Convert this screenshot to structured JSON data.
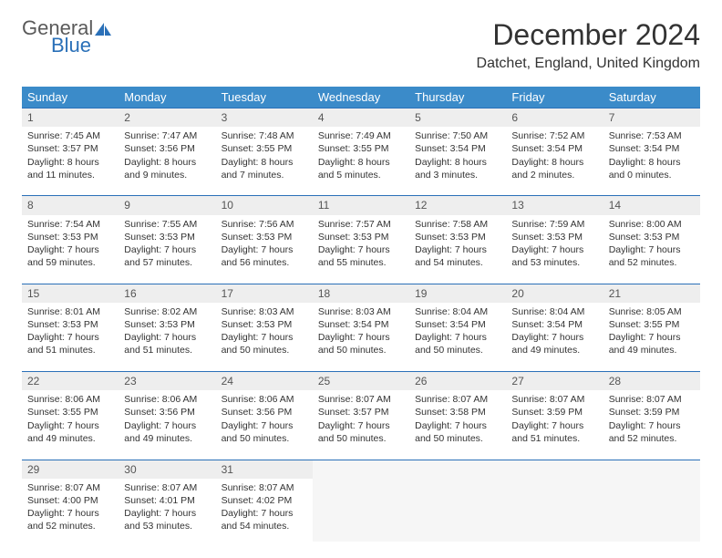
{
  "logo": {
    "general": "General",
    "blue": "Blue"
  },
  "title": "December 2024",
  "location": "Datchet, England, United Kingdom",
  "colors": {
    "header_bg": "#3b8bc9",
    "header_text": "#ffffff",
    "border": "#2a70b8",
    "daynum_bg": "#eeeeee",
    "logo_blue": "#2a70b8",
    "logo_gray": "#5a5a5a"
  },
  "weekdays": [
    "Sunday",
    "Monday",
    "Tuesday",
    "Wednesday",
    "Thursday",
    "Friday",
    "Saturday"
  ],
  "weeks": [
    [
      {
        "n": "1",
        "sr": "Sunrise: 7:45 AM",
        "ss": "Sunset: 3:57 PM",
        "d1": "Daylight: 8 hours",
        "d2": "and 11 minutes."
      },
      {
        "n": "2",
        "sr": "Sunrise: 7:47 AM",
        "ss": "Sunset: 3:56 PM",
        "d1": "Daylight: 8 hours",
        "d2": "and 9 minutes."
      },
      {
        "n": "3",
        "sr": "Sunrise: 7:48 AM",
        "ss": "Sunset: 3:55 PM",
        "d1": "Daylight: 8 hours",
        "d2": "and 7 minutes."
      },
      {
        "n": "4",
        "sr": "Sunrise: 7:49 AM",
        "ss": "Sunset: 3:55 PM",
        "d1": "Daylight: 8 hours",
        "d2": "and 5 minutes."
      },
      {
        "n": "5",
        "sr": "Sunrise: 7:50 AM",
        "ss": "Sunset: 3:54 PM",
        "d1": "Daylight: 8 hours",
        "d2": "and 3 minutes."
      },
      {
        "n": "6",
        "sr": "Sunrise: 7:52 AM",
        "ss": "Sunset: 3:54 PM",
        "d1": "Daylight: 8 hours",
        "d2": "and 2 minutes."
      },
      {
        "n": "7",
        "sr": "Sunrise: 7:53 AM",
        "ss": "Sunset: 3:54 PM",
        "d1": "Daylight: 8 hours",
        "d2": "and 0 minutes."
      }
    ],
    [
      {
        "n": "8",
        "sr": "Sunrise: 7:54 AM",
        "ss": "Sunset: 3:53 PM",
        "d1": "Daylight: 7 hours",
        "d2": "and 59 minutes."
      },
      {
        "n": "9",
        "sr": "Sunrise: 7:55 AM",
        "ss": "Sunset: 3:53 PM",
        "d1": "Daylight: 7 hours",
        "d2": "and 57 minutes."
      },
      {
        "n": "10",
        "sr": "Sunrise: 7:56 AM",
        "ss": "Sunset: 3:53 PM",
        "d1": "Daylight: 7 hours",
        "d2": "and 56 minutes."
      },
      {
        "n": "11",
        "sr": "Sunrise: 7:57 AM",
        "ss": "Sunset: 3:53 PM",
        "d1": "Daylight: 7 hours",
        "d2": "and 55 minutes."
      },
      {
        "n": "12",
        "sr": "Sunrise: 7:58 AM",
        "ss": "Sunset: 3:53 PM",
        "d1": "Daylight: 7 hours",
        "d2": "and 54 minutes."
      },
      {
        "n": "13",
        "sr": "Sunrise: 7:59 AM",
        "ss": "Sunset: 3:53 PM",
        "d1": "Daylight: 7 hours",
        "d2": "and 53 minutes."
      },
      {
        "n": "14",
        "sr": "Sunrise: 8:00 AM",
        "ss": "Sunset: 3:53 PM",
        "d1": "Daylight: 7 hours",
        "d2": "and 52 minutes."
      }
    ],
    [
      {
        "n": "15",
        "sr": "Sunrise: 8:01 AM",
        "ss": "Sunset: 3:53 PM",
        "d1": "Daylight: 7 hours",
        "d2": "and 51 minutes."
      },
      {
        "n": "16",
        "sr": "Sunrise: 8:02 AM",
        "ss": "Sunset: 3:53 PM",
        "d1": "Daylight: 7 hours",
        "d2": "and 51 minutes."
      },
      {
        "n": "17",
        "sr": "Sunrise: 8:03 AM",
        "ss": "Sunset: 3:53 PM",
        "d1": "Daylight: 7 hours",
        "d2": "and 50 minutes."
      },
      {
        "n": "18",
        "sr": "Sunrise: 8:03 AM",
        "ss": "Sunset: 3:54 PM",
        "d1": "Daylight: 7 hours",
        "d2": "and 50 minutes."
      },
      {
        "n": "19",
        "sr": "Sunrise: 8:04 AM",
        "ss": "Sunset: 3:54 PM",
        "d1": "Daylight: 7 hours",
        "d2": "and 50 minutes."
      },
      {
        "n": "20",
        "sr": "Sunrise: 8:04 AM",
        "ss": "Sunset: 3:54 PM",
        "d1": "Daylight: 7 hours",
        "d2": "and 49 minutes."
      },
      {
        "n": "21",
        "sr": "Sunrise: 8:05 AM",
        "ss": "Sunset: 3:55 PM",
        "d1": "Daylight: 7 hours",
        "d2": "and 49 minutes."
      }
    ],
    [
      {
        "n": "22",
        "sr": "Sunrise: 8:06 AM",
        "ss": "Sunset: 3:55 PM",
        "d1": "Daylight: 7 hours",
        "d2": "and 49 minutes."
      },
      {
        "n": "23",
        "sr": "Sunrise: 8:06 AM",
        "ss": "Sunset: 3:56 PM",
        "d1": "Daylight: 7 hours",
        "d2": "and 49 minutes."
      },
      {
        "n": "24",
        "sr": "Sunrise: 8:06 AM",
        "ss": "Sunset: 3:56 PM",
        "d1": "Daylight: 7 hours",
        "d2": "and 50 minutes."
      },
      {
        "n": "25",
        "sr": "Sunrise: 8:07 AM",
        "ss": "Sunset: 3:57 PM",
        "d1": "Daylight: 7 hours",
        "d2": "and 50 minutes."
      },
      {
        "n": "26",
        "sr": "Sunrise: 8:07 AM",
        "ss": "Sunset: 3:58 PM",
        "d1": "Daylight: 7 hours",
        "d2": "and 50 minutes."
      },
      {
        "n": "27",
        "sr": "Sunrise: 8:07 AM",
        "ss": "Sunset: 3:59 PM",
        "d1": "Daylight: 7 hours",
        "d2": "and 51 minutes."
      },
      {
        "n": "28",
        "sr": "Sunrise: 8:07 AM",
        "ss": "Sunset: 3:59 PM",
        "d1": "Daylight: 7 hours",
        "d2": "and 52 minutes."
      }
    ],
    [
      {
        "n": "29",
        "sr": "Sunrise: 8:07 AM",
        "ss": "Sunset: 4:00 PM",
        "d1": "Daylight: 7 hours",
        "d2": "and 52 minutes."
      },
      {
        "n": "30",
        "sr": "Sunrise: 8:07 AM",
        "ss": "Sunset: 4:01 PM",
        "d1": "Daylight: 7 hours",
        "d2": "and 53 minutes."
      },
      {
        "n": "31",
        "sr": "Sunrise: 8:07 AM",
        "ss": "Sunset: 4:02 PM",
        "d1": "Daylight: 7 hours",
        "d2": "and 54 minutes."
      },
      null,
      null,
      null,
      null
    ]
  ]
}
